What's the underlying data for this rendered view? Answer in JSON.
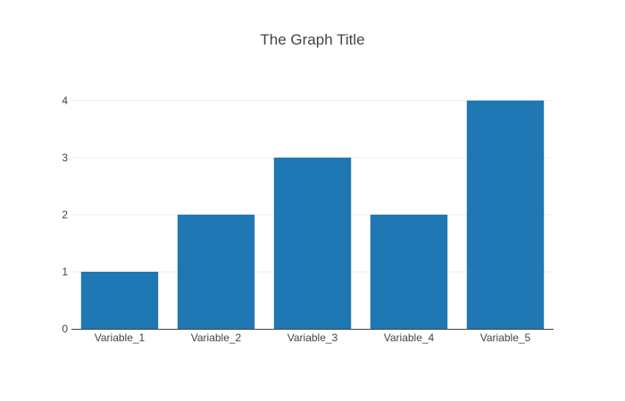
{
  "chart_data": {
    "type": "bar",
    "title": "The Graph Title",
    "xlabel": "",
    "ylabel": "",
    "categories": [
      "Variable_1",
      "Variable_2",
      "Variable_3",
      "Variable_4",
      "Variable_5"
    ],
    "values": [
      1,
      2,
      3,
      2,
      4
    ],
    "ylim": [
      0,
      4.2
    ],
    "yticks": [
      0,
      1,
      2,
      3,
      4
    ],
    "grid": true,
    "legend": "none",
    "colors": {
      "bar": "#1f77b4",
      "grid": "#eeeeee",
      "axis_line": "#444444",
      "text": "#444444",
      "background": "#ffffff"
    }
  }
}
